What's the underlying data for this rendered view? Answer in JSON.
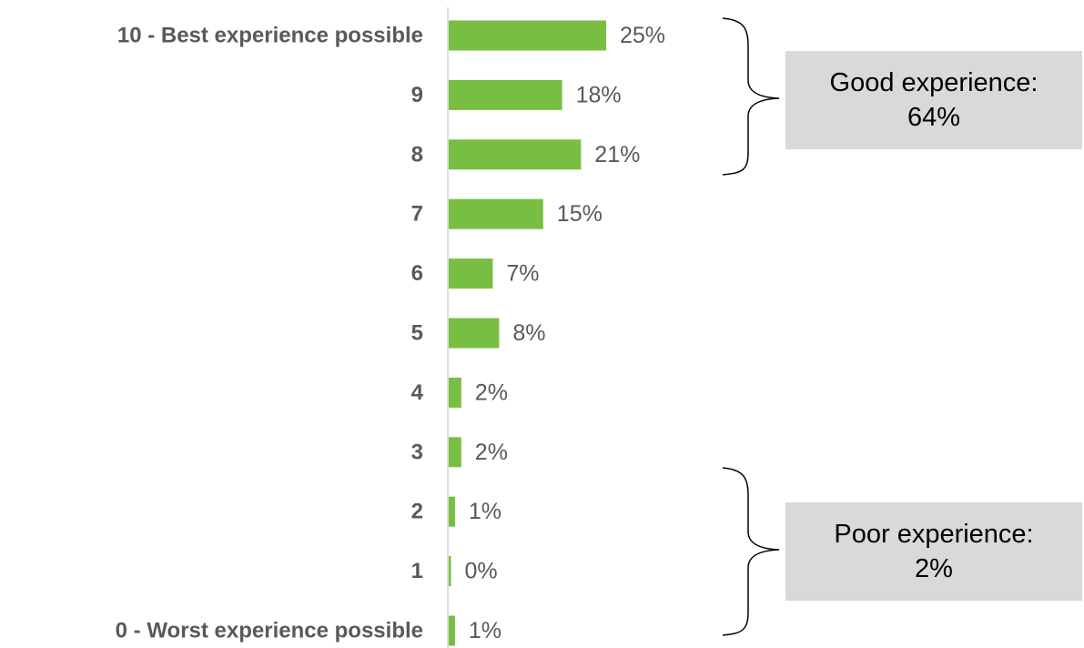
{
  "chart_data": {
    "type": "bar",
    "orientation": "horizontal",
    "categories": [
      "10 - Best experience possible",
      "9",
      "8",
      "7",
      "6",
      "5",
      "4",
      "3",
      "2",
      "1",
      "0 - Worst experience possible"
    ],
    "values": [
      25,
      18,
      21,
      15,
      7,
      8,
      2,
      2,
      1,
      0,
      1
    ],
    "value_labels": [
      "25%",
      "18%",
      "21%",
      "15%",
      "7%",
      "8%",
      "2%",
      "2%",
      "1%",
      "0%",
      "1%"
    ],
    "unit": "%",
    "bar_color": "#77be43",
    "grid": false,
    "legend": "none",
    "annotations": [
      {
        "label": "Good experience:",
        "value": "64%",
        "categories": [
          "10 - Best experience possible",
          "9",
          "8"
        ]
      },
      {
        "label": "Poor experience:",
        "value": "2%",
        "categories": [
          "2",
          "1",
          "0 - Worst experience possible"
        ]
      }
    ]
  },
  "summary": {
    "good": {
      "label": "Good experience:",
      "value": "64%"
    },
    "poor": {
      "label": "Poor experience:",
      "value": "2%"
    }
  }
}
